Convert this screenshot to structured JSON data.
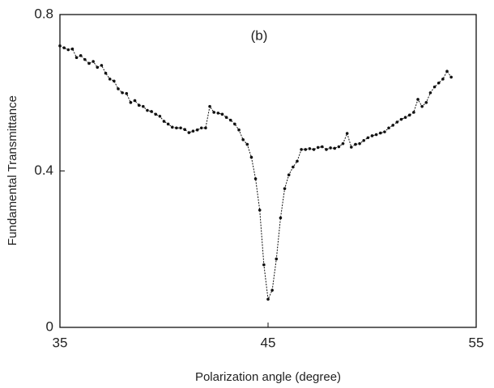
{
  "chart_data": {
    "type": "line",
    "annotation": "(b)",
    "xlabel": "Polarization angle (degree)",
    "ylabel": "Fundamental Transmittance",
    "x": [
      35,
      35.2,
      35.4,
      35.6,
      35.8,
      36,
      36.2,
      36.4,
      36.6,
      36.8,
      37,
      37.2,
      37.4,
      37.6,
      37.8,
      38,
      38.2,
      38.4,
      38.6,
      38.8,
      39,
      39.2,
      39.4,
      39.6,
      39.8,
      40,
      40.2,
      40.4,
      40.6,
      40.8,
      41,
      41.2,
      41.4,
      41.6,
      41.8,
      42,
      42.2,
      42.4,
      42.6,
      42.8,
      43,
      43.2,
      43.4,
      43.6,
      43.8,
      44,
      44.2,
      44.4,
      44.6,
      44.8,
      45,
      45.2,
      45.4,
      45.6,
      45.8,
      46,
      46.2,
      46.4,
      46.6,
      46.8,
      47,
      47.2,
      47.4,
      47.6,
      47.8,
      48,
      48.2,
      48.4,
      48.6,
      48.8,
      49,
      49.2,
      49.4,
      49.6,
      49.8,
      50,
      50.2,
      50.4,
      50.6,
      50.8,
      51,
      51.2,
      51.4,
      51.6,
      51.8,
      52,
      52.2,
      52.4,
      52.6,
      52.8,
      53,
      53.2,
      53.4,
      53.6,
      53.8
    ],
    "values": [
      0.72,
      0.715,
      0.71,
      0.712,
      0.69,
      0.695,
      0.685,
      0.675,
      0.68,
      0.665,
      0.67,
      0.65,
      0.635,
      0.63,
      0.61,
      0.6,
      0.598,
      0.575,
      0.58,
      0.568,
      0.565,
      0.555,
      0.552,
      0.545,
      0.54,
      0.527,
      0.52,
      0.512,
      0.51,
      0.51,
      0.506,
      0.498,
      0.502,
      0.505,
      0.51,
      0.51,
      0.565,
      0.55,
      0.548,
      0.545,
      0.537,
      0.53,
      0.52,
      0.505,
      0.48,
      0.468,
      0.435,
      0.38,
      0.3,
      0.16,
      0.072,
      0.095,
      0.175,
      0.28,
      0.355,
      0.39,
      0.41,
      0.425,
      0.455,
      0.455,
      0.457,
      0.455,
      0.46,
      0.462,
      0.455,
      0.459,
      0.458,
      0.462,
      0.47,
      0.496,
      0.461,
      0.468,
      0.47,
      0.478,
      0.485,
      0.49,
      0.493,
      0.497,
      0.5,
      0.51,
      0.517,
      0.525,
      0.532,
      0.537,
      0.543,
      0.55,
      0.583,
      0.565,
      0.575,
      0.6,
      0.615,
      0.625,
      0.635,
      0.655,
      0.64
    ],
    "color": "#111111",
    "xlim": [
      35,
      55
    ],
    "xticks": [
      35,
      45,
      55
    ],
    "ylim": [
      0,
      0.8
    ],
    "yticks": [
      0,
      0.4,
      0.8
    ]
  }
}
